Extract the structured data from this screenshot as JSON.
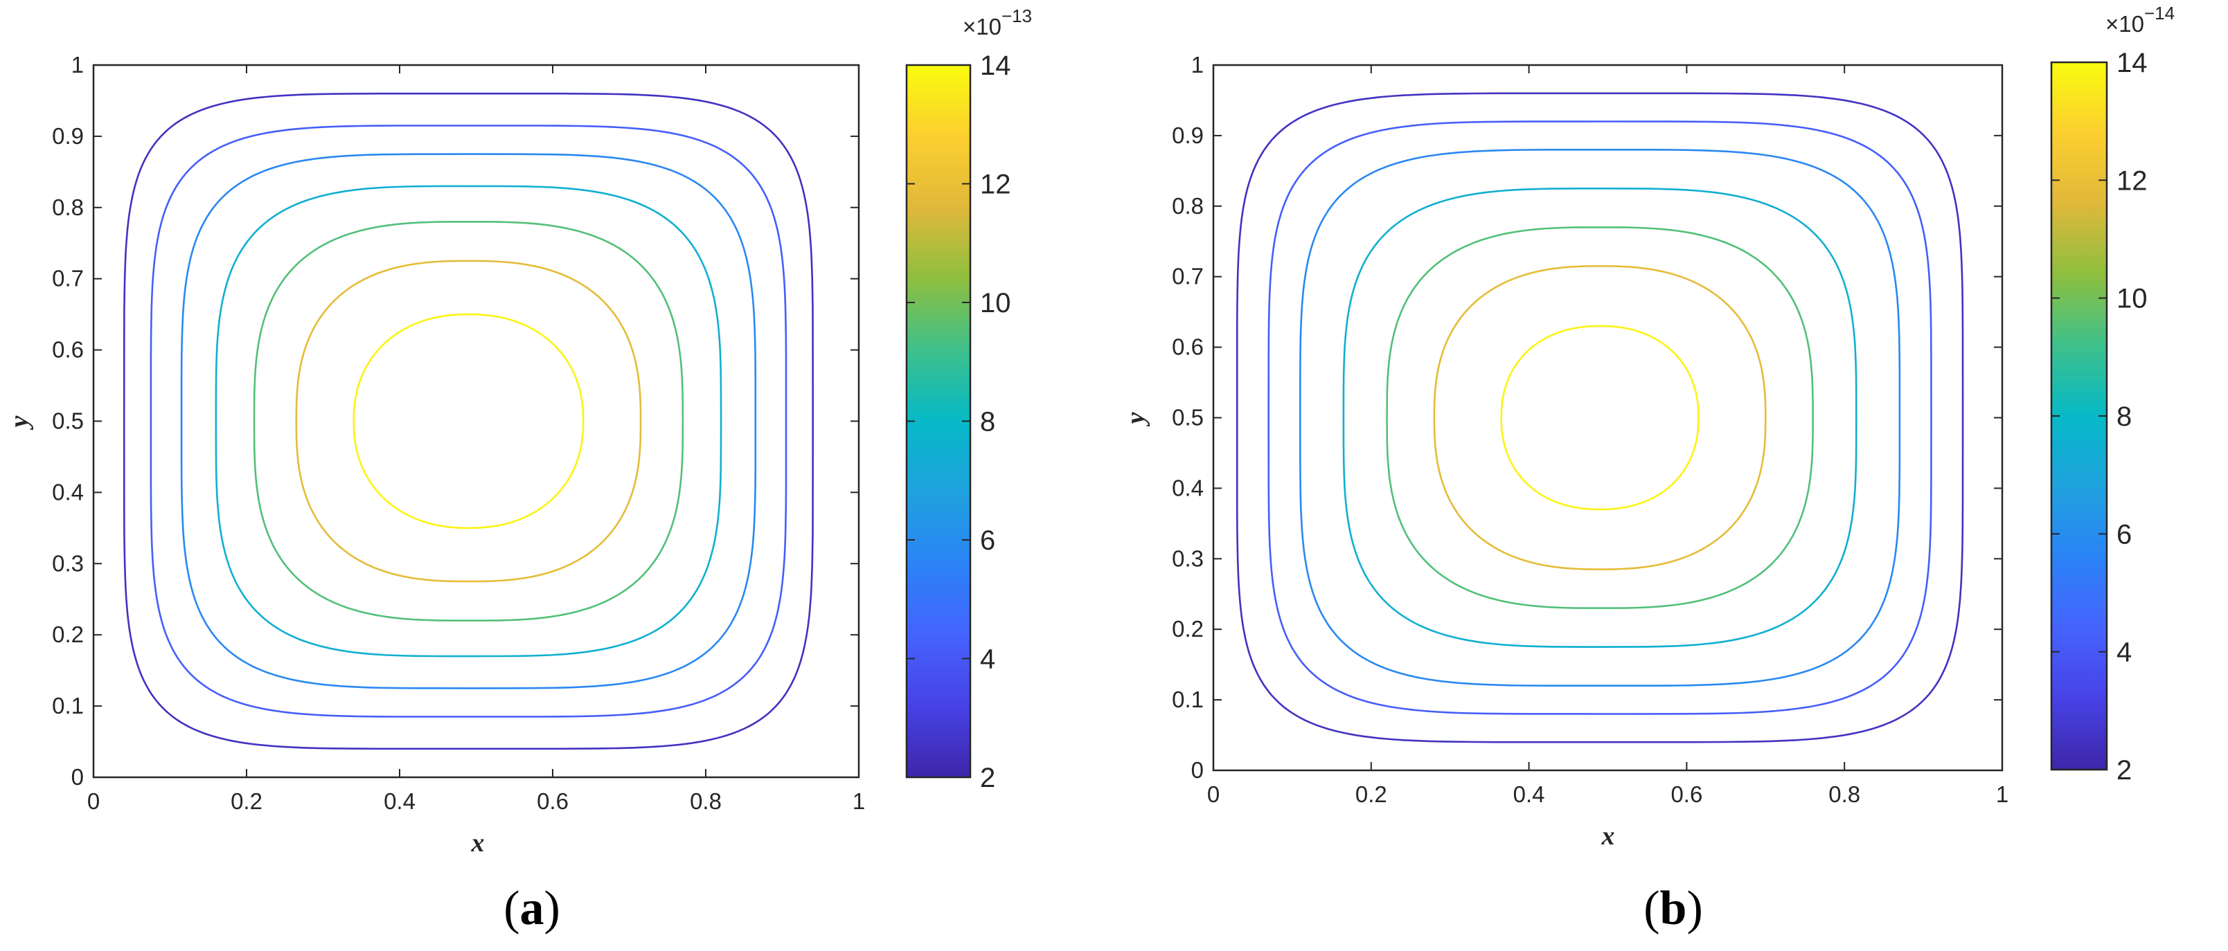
{
  "chart_data": [
    {
      "type": "contour",
      "panel": "a",
      "panel_label": "a",
      "xlabel": "x",
      "ylabel": "y",
      "xlim": [
        0,
        1
      ],
      "ylim": [
        0,
        1
      ],
      "x_ticks": [
        "0",
        "0.2",
        "0.4",
        "0.6",
        "0.8",
        "1"
      ],
      "y_ticks": [
        "0",
        "0.1",
        "0.2",
        "0.3",
        "0.4",
        "0.5",
        "0.6",
        "0.7",
        "0.8",
        "0.9",
        "1"
      ],
      "center": [
        0.49,
        0.5
      ],
      "contours": [
        {
          "level": 2.5,
          "half_width": 0.45,
          "half_height": 0.46,
          "exponent": 5.5
        },
        {
          "level": 4.2,
          "half_width": 0.415,
          "half_height": 0.415,
          "exponent": 4.8
        },
        {
          "level": 5.8,
          "half_width": 0.375,
          "half_height": 0.375,
          "exponent": 4.2
        },
        {
          "level": 7.5,
          "half_width": 0.33,
          "half_height": 0.33,
          "exponent": 3.6
        },
        {
          "level": 9.5,
          "half_width": 0.28,
          "half_height": 0.28,
          "exponent": 3.0
        },
        {
          "level": 11.8,
          "half_width": 0.225,
          "half_height": 0.225,
          "exponent": 2.6
        },
        {
          "level": 13.8,
          "half_width": 0.15,
          "half_height": 0.15,
          "exponent": 2.2
        }
      ],
      "colorbar": {
        "min": 2,
        "max": 14,
        "ticks": [
          "2",
          "4",
          "6",
          "8",
          "10",
          "12",
          "14"
        ],
        "multiplier_base": "×10",
        "multiplier_exp": "−13",
        "colormap": "parula"
      }
    },
    {
      "type": "contour",
      "panel": "b",
      "panel_label": "b",
      "xlabel": "x",
      "ylabel": "y",
      "xlim": [
        0,
        1
      ],
      "ylim": [
        0,
        1
      ],
      "x_ticks": [
        "0",
        "0.2",
        "0.4",
        "0.6",
        "0.8",
        "1"
      ],
      "y_ticks": [
        "0",
        "0.1",
        "0.2",
        "0.3",
        "0.4",
        "0.5",
        "0.6",
        "0.7",
        "0.8",
        "0.9",
        "1"
      ],
      "center": [
        0.49,
        0.5
      ],
      "contours": [
        {
          "level": 2.5,
          "half_width": 0.46,
          "half_height": 0.46,
          "exponent": 5.5
        },
        {
          "level": 4.2,
          "half_width": 0.42,
          "half_height": 0.42,
          "exponent": 4.8
        },
        {
          "level": 5.8,
          "half_width": 0.38,
          "half_height": 0.38,
          "exponent": 4.2
        },
        {
          "level": 7.5,
          "half_width": 0.325,
          "half_height": 0.325,
          "exponent": 3.5
        },
        {
          "level": 9.5,
          "half_width": 0.27,
          "half_height": 0.27,
          "exponent": 2.9
        },
        {
          "level": 11.8,
          "half_width": 0.21,
          "half_height": 0.215,
          "exponent": 2.5
        },
        {
          "level": 13.8,
          "half_width": 0.125,
          "half_height": 0.13,
          "exponent": 2.2
        }
      ],
      "colorbar": {
        "min": 2,
        "max": 14,
        "ticks": [
          "2",
          "4",
          "6",
          "8",
          "10",
          "12",
          "14"
        ],
        "multiplier_base": "×10",
        "multiplier_exp": "−14",
        "colormap": "parula"
      }
    }
  ]
}
